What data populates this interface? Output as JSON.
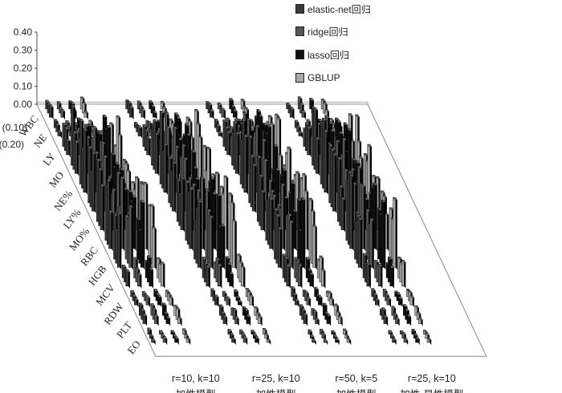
{
  "chart_data": {
    "type": "bar",
    "subtype": "3d-bar",
    "title": "",
    "ylim": [
      -0.2,
      0.4
    ],
    "yticks": [
      "0.40",
      "0.30",
      "0.20",
      "0.10",
      "0.00",
      "(0.10)",
      "(0.20)"
    ],
    "categories": [
      "WBC",
      "NE",
      "LY",
      "MO",
      "NE%",
      "LY%",
      "MO%",
      "RBC",
      "HGB",
      "MCV",
      "RDW",
      "PLT",
      "EO"
    ],
    "scenarios": [
      {
        "line1": "r=10, k=10",
        "line2": "加性模型"
      },
      {
        "line1": "r=25, k=10",
        "line2": "加性模型"
      },
      {
        "line1": "r=50, k=5",
        "line2": "加性模型"
      },
      {
        "line1": "r=25, k=10",
        "line2": "加性-显性模型"
      }
    ],
    "series": [
      {
        "name": "elastic-net回归",
        "color": "#3a3a3a"
      },
      {
        "name": "ridge回归",
        "color": "#555555"
      },
      {
        "name": "lasso回归",
        "color": "#111111"
      },
      {
        "name": "GBLUP",
        "color": "#a8a8a8"
      }
    ],
    "grid": false,
    "legend_position": "top-right"
  }
}
